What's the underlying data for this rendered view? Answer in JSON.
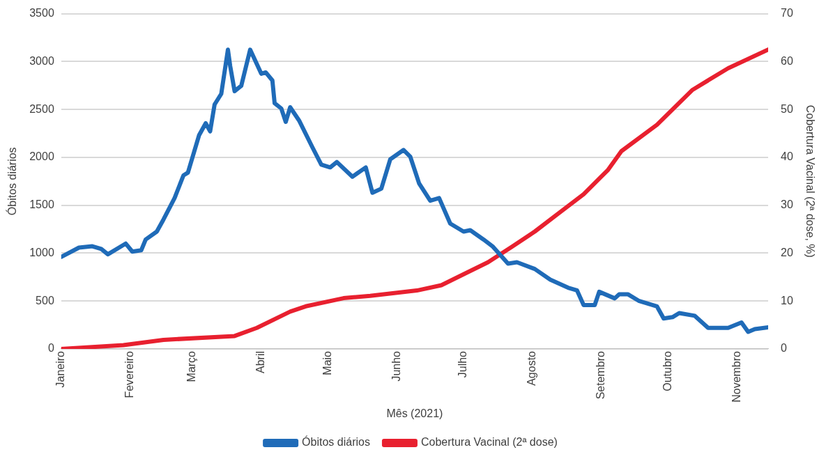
{
  "chart_data": {
    "type": "line",
    "xlabel": "Mês (2021)",
    "ylabel": "Óbitos diários",
    "y2label": "Cobertura Vacinal (2ª dose, %)",
    "xlim": [
      "2021-01-01",
      "2021-11-15"
    ],
    "xticks": [
      {
        "value": "2021-01-01",
        "label": "Janeiro"
      },
      {
        "value": "2021-02-01",
        "label": "Fevereiro"
      },
      {
        "value": "2021-03-01",
        "label": "Março"
      },
      {
        "value": "2021-04-01",
        "label": "Abril"
      },
      {
        "value": "2021-05-01",
        "label": "Maio"
      },
      {
        "value": "2021-06-01",
        "label": "Junho"
      },
      {
        "value": "2021-07-01",
        "label": "Julho"
      },
      {
        "value": "2021-08-01",
        "label": "Agosto"
      },
      {
        "value": "2021-09-01",
        "label": "Setembro"
      },
      {
        "value": "2021-10-01",
        "label": "Outubro"
      },
      {
        "value": "2021-11-01",
        "label": "Novembro"
      }
    ],
    "ylim": [
      0,
      3500
    ],
    "yticks": [
      0,
      500,
      1000,
      1500,
      2000,
      2500,
      3000,
      3500
    ],
    "y2lim": [
      0,
      70
    ],
    "y2ticks": [
      0,
      10,
      20,
      30,
      40,
      50,
      60,
      70
    ],
    "grid": "y",
    "legend": "bottom",
    "marker": "none",
    "line_style": "solid",
    "series": [
      {
        "name": "Óbitos diários",
        "color": "#1f6bb8",
        "x": [
          "2021-01-01",
          "2021-01-09",
          "2021-01-15",
          "2021-01-19",
          "2021-01-22",
          "2021-01-30",
          "2021-02-02",
          "2021-02-06",
          "2021-02-08",
          "2021-02-13",
          "2021-02-16",
          "2021-02-21",
          "2021-02-25",
          "2021-02-27",
          "2021-03-04",
          "2021-03-07",
          "2021-03-09",
          "2021-03-11",
          "2021-03-14",
          "2021-03-17",
          "2021-03-18",
          "2021-03-20",
          "2021-03-23",
          "2021-03-27",
          "2021-04-01",
          "2021-04-03",
          "2021-04-06",
          "2021-04-07",
          "2021-04-10",
          "2021-04-12",
          "2021-04-14",
          "2021-04-18",
          "2021-04-24",
          "2021-04-28",
          "2021-05-02",
          "2021-05-05",
          "2021-05-12",
          "2021-05-18",
          "2021-05-21",
          "2021-05-25",
          "2021-05-29",
          "2021-06-04",
          "2021-06-07",
          "2021-06-11",
          "2021-06-16",
          "2021-06-20",
          "2021-06-25",
          "2021-07-01",
          "2021-07-04",
          "2021-07-10",
          "2021-07-14",
          "2021-07-21",
          "2021-07-25",
          "2021-08-02",
          "2021-08-09",
          "2021-08-17",
          "2021-08-21",
          "2021-08-24",
          "2021-08-29",
          "2021-08-31",
          "2021-09-07",
          "2021-09-09",
          "2021-09-13",
          "2021-09-18",
          "2021-09-26",
          "2021-09-29",
          "2021-10-03",
          "2021-10-06",
          "2021-10-13",
          "2021-10-19",
          "2021-10-28",
          "2021-11-03",
          "2021-11-06",
          "2021-11-09",
          "2021-11-15"
        ],
        "values": [
          960,
          1058,
          1072,
          1044,
          988,
          1100,
          1016,
          1030,
          1142,
          1225,
          1351,
          1575,
          1812,
          1840,
          2230,
          2356,
          2272,
          2552,
          2663,
          3124,
          2956,
          2691,
          2747,
          3124,
          2873,
          2887,
          2803,
          2565,
          2510,
          2370,
          2523,
          2385,
          2105,
          1924,
          1895,
          1951,
          1798,
          1895,
          1630,
          1673,
          1979,
          2077,
          2008,
          1728,
          1547,
          1575,
          1309,
          1225,
          1240,
          1142,
          1072,
          890,
          905,
          835,
          723,
          639,
          612,
          458,
          458,
          597,
          528,
          570,
          570,
          500,
          444,
          318,
          332,
          374,
          346,
          220,
          220,
          276,
          178,
          207,
          226
        ]
      },
      {
        "name": "Cobertura Vacinal (2ª dose)",
        "color": "#e8202f",
        "axis": "y2",
        "x": [
          "2021-01-01",
          "2021-01-29",
          "2021-02-16",
          "2021-03-20",
          "2021-03-30",
          "2021-04-14",
          "2021-04-21",
          "2021-05-08",
          "2021-05-20",
          "2021-06-10",
          "2021-06-21",
          "2021-07-01",
          "2021-07-12",
          "2021-07-23",
          "2021-08-02",
          "2021-08-13",
          "2021-08-24",
          "2021-09-04",
          "2021-09-10",
          "2021-09-26",
          "2021-10-12",
          "2021-10-28",
          "2021-11-15"
        ],
        "values": [
          0,
          0.8,
          1.9,
          2.7,
          4.4,
          7.8,
          8.9,
          10.6,
          11.1,
          12.2,
          13.3,
          15.6,
          18.1,
          21.4,
          24.5,
          28.4,
          32.3,
          37.4,
          41.3,
          46.8,
          54.1,
          58.6,
          62.5
        ]
      }
    ]
  }
}
